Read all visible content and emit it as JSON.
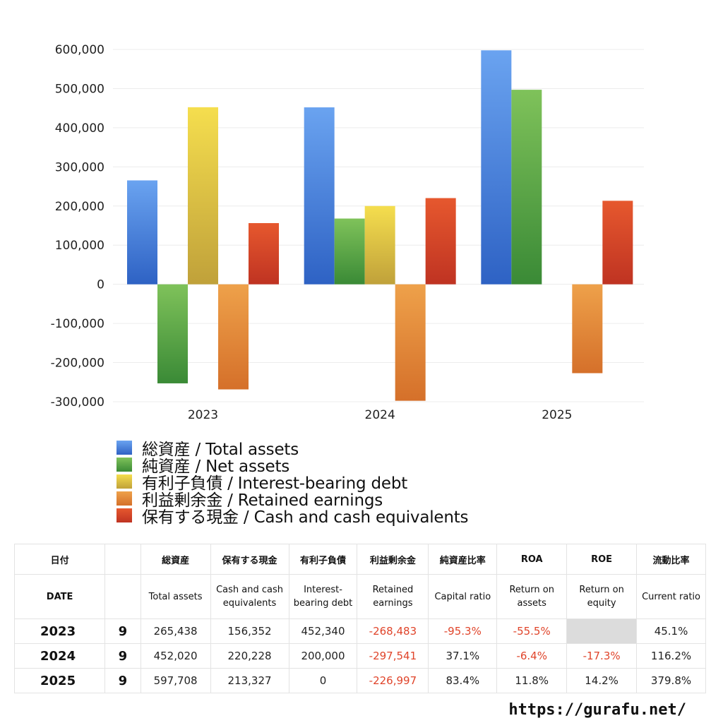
{
  "chart_data": {
    "type": "bar",
    "categories": [
      "2023",
      "2024",
      "2025"
    ],
    "ylim": [
      -300000,
      600000
    ],
    "yticks": [
      "600,000",
      "500,000",
      "400,000",
      "300,000",
      "200,000",
      "100,000",
      "0",
      "-100,000",
      "-200,000",
      "-300,000"
    ],
    "ytick_values": [
      600000,
      500000,
      400000,
      300000,
      200000,
      100000,
      0,
      -100000,
      -200000,
      -300000
    ],
    "grid": true,
    "legend_position": "bottom",
    "series": [
      {
        "name": "総資産 / Total assets",
        "color": "#3f7fe0",
        "values": [
          265438,
          452020,
          597708
        ]
      },
      {
        "name": "純資産 / Net assets",
        "color": "#4ea043",
        "values": [
          -253000,
          168000,
          497000
        ]
      },
      {
        "name": "有利子負債 / Interest-bearing debt",
        "color": "#dcc23c",
        "values": [
          452340,
          200000,
          0
        ]
      },
      {
        "name": "利益剰余金 / Retained earnings",
        "color": "#e07f30",
        "values": [
          -268483,
          -297541,
          -226997
        ]
      },
      {
        "name": "保有する現金 /  Cash and cash equivalents",
        "color": "#d9472a",
        "values": [
          156352,
          220228,
          213327
        ]
      }
    ]
  },
  "table": {
    "header_jp": [
      "日付",
      "",
      "総資産",
      "保有する現金",
      "有利子負債",
      "利益剰余金",
      "純資産比率",
      "ROA",
      "ROE",
      "流動比率"
    ],
    "header_en": [
      "DATE",
      "",
      "Total assets",
      "Cash and cash equivalents",
      "Interest-bearing debt",
      "Retained earnings",
      "Capital ratio",
      "Return on assets",
      "Return on equity",
      "Current ratio"
    ],
    "rows": [
      {
        "year": "2023",
        "month": "9",
        "cells": [
          "265,438",
          "156,352",
          "452,340",
          "-268,483",
          "-95.3%",
          "-55.5%",
          "",
          "45.1%"
        ]
      },
      {
        "year": "2024",
        "month": "9",
        "cells": [
          "452,020",
          "220,228",
          "200,000",
          "-297,541",
          "37.1%",
          "-6.4%",
          "-17.3%",
          "116.2%"
        ]
      },
      {
        "year": "2025",
        "month": "9",
        "cells": [
          "597,708",
          "213,327",
          "0",
          "-226,997",
          "83.4%",
          "11.8%",
          "14.2%",
          "379.8%"
        ]
      }
    ]
  },
  "footer": {
    "url": "https://gurafu.net/"
  }
}
